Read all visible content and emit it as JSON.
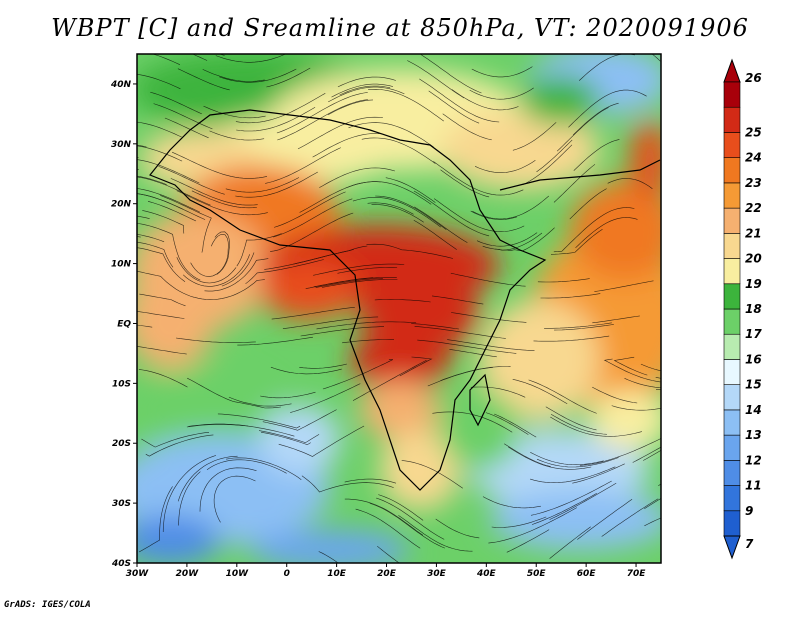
{
  "title": "WBPT [C] and Sreamline at 850hPa, VT: 2020091906",
  "credit": "GrADS: IGES/COLA",
  "map": {
    "lon_labels": [
      "30W",
      "20W",
      "10W",
      "0",
      "10E",
      "20E",
      "30E",
      "40E",
      "50E",
      "60E",
      "70E"
    ],
    "lon_values": [
      -30,
      -20,
      -10,
      0,
      10,
      20,
      30,
      40,
      50,
      60,
      70
    ],
    "lat_labels": [
      "40N",
      "30N",
      "20N",
      "10N",
      "EQ",
      "10S",
      "20S",
      "30S",
      "40S"
    ],
    "lat_values": [
      40,
      30,
      20,
      10,
      0,
      -10,
      -20,
      -30,
      -40
    ],
    "lon_range": [
      -30,
      75
    ],
    "lat_range": [
      -40,
      45
    ],
    "field": "wet-bulb potential temperature with streamlines"
  },
  "colorbar": {
    "labels": [
      "7",
      "9",
      "11",
      "12",
      "13",
      "14",
      "15",
      "16",
      "17",
      "18",
      "19",
      "20",
      "21",
      "22",
      "23",
      "24",
      "25",
      "26"
    ],
    "colors": [
      "#1f5fd0",
      "#3275dc",
      "#4f8de6",
      "#6aa5ee",
      "#8cbff4",
      "#b4d8f8",
      "#e8f8ff",
      "#b8ecb0",
      "#6cd068",
      "#3cb43c",
      "#f8eea0",
      "#f8d890",
      "#f5b070",
      "#f59a35",
      "#f07820",
      "#e84e1c",
      "#d22a16",
      "#a8000a"
    ]
  }
}
